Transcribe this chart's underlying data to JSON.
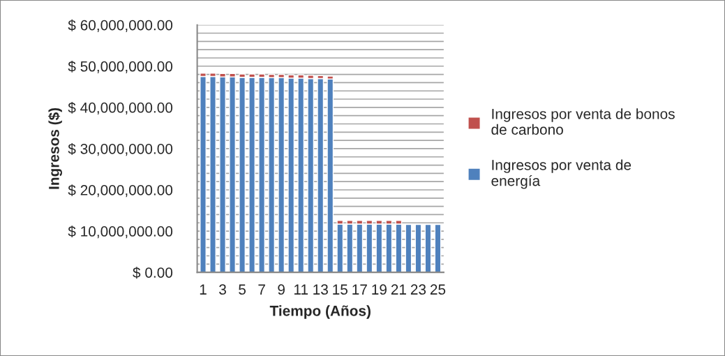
{
  "chart_data": {
    "type": "bar",
    "stacked": true,
    "xlabel": "Tiempo (Años)",
    "ylabel": "Ingresos ($)",
    "categories": [
      "1",
      null,
      "3",
      null,
      "5",
      null,
      "7",
      null,
      "9",
      null,
      "11",
      null,
      "13",
      null,
      "15",
      null,
      "17",
      null,
      "19",
      null,
      "21",
      null,
      "23",
      null,
      "25"
    ],
    "series": [
      {
        "name": "Ingresos por venta de energía",
        "color": "#4f81bd",
        "values": [
          47500000,
          47500000,
          47400000,
          47400000,
          47300000,
          47300000,
          47300000,
          47200000,
          47200000,
          47100000,
          47100000,
          47000000,
          47000000,
          46900000,
          11700000,
          11700000,
          11700000,
          11700000,
          11700000,
          11700000,
          11700000,
          11600000,
          11600000,
          11600000,
          11600000
        ]
      },
      {
        "name": "Ingresos por venta de bonos de carbono",
        "color": "#c0504d",
        "values": [
          800000,
          800000,
          800000,
          800000,
          800000,
          800000,
          800000,
          800000,
          800000,
          800000,
          800000,
          800000,
          700000,
          700000,
          900000,
          900000,
          900000,
          900000,
          900000,
          900000,
          900000,
          null,
          null,
          null,
          null
        ]
      }
    ],
    "ylim": [
      0,
      60000000
    ],
    "yticks": [
      {
        "value": 0,
        "label": "$ 0.00"
      },
      {
        "value": 2000000,
        "label": null
      },
      {
        "value": 4000000,
        "label": null
      },
      {
        "value": 6000000,
        "label": null
      },
      {
        "value": 8000000,
        "label": null
      },
      {
        "value": 10000000,
        "label": "$ 10,000,000.00"
      },
      {
        "value": 12000000,
        "label": null
      },
      {
        "value": 14000000,
        "label": null
      },
      {
        "value": 16000000,
        "label": null
      },
      {
        "value": 18000000,
        "label": null
      },
      {
        "value": 20000000,
        "label": "$ 20,000,000.00"
      },
      {
        "value": 22000000,
        "label": null
      },
      {
        "value": 24000000,
        "label": null
      },
      {
        "value": 26000000,
        "label": null
      },
      {
        "value": 28000000,
        "label": null
      },
      {
        "value": 30000000,
        "label": "$ 30,000,000.00"
      },
      {
        "value": 32000000,
        "label": null
      },
      {
        "value": 34000000,
        "label": null
      },
      {
        "value": 36000000,
        "label": null
      },
      {
        "value": 38000000,
        "label": null
      },
      {
        "value": 40000000,
        "label": "$ 40,000,000.00"
      },
      {
        "value": 42000000,
        "label": null
      },
      {
        "value": 44000000,
        "label": null
      },
      {
        "value": 46000000,
        "label": null
      },
      {
        "value": 48000000,
        "label": null
      },
      {
        "value": 50000000,
        "label": "$ 50,000,000.00"
      },
      {
        "value": 52000000,
        "label": null
      },
      {
        "value": 54000000,
        "label": null
      },
      {
        "value": 56000000,
        "label": null
      },
      {
        "value": 58000000,
        "label": null
      },
      {
        "value": 60000000,
        "label": "$ 60,000,000.00"
      }
    ],
    "grid": "y",
    "legend": "right"
  }
}
